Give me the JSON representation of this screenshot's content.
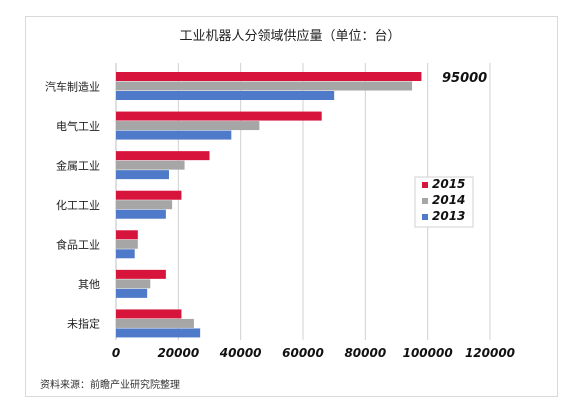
{
  "chart_data": {
    "type": "bar",
    "orientation": "horizontal",
    "title": "工业机器人分领域供应量（单位：台）",
    "categories": [
      "汽车制造业",
      "电气工业",
      "金属工业",
      "化工工业",
      "食品工业",
      "其他",
      "未指定"
    ],
    "series": [
      {
        "name": "2015",
        "color": "#d7143c",
        "values": [
          98000,
          66000,
          30000,
          21000,
          7000,
          16000,
          21000
        ]
      },
      {
        "name": "2014",
        "color": "#a6a6a6",
        "values": [
          95000,
          46000,
          22000,
          18000,
          7000,
          11000,
          25000
        ]
      },
      {
        "name": "2013",
        "color": "#4f7ac9",
        "values": [
          70000,
          37000,
          17000,
          16000,
          6000,
          10000,
          27000
        ]
      }
    ],
    "xlim": [
      0,
      120000
    ],
    "xticks": [
      "0",
      "20000",
      "40000",
      "60000",
      "80000",
      "100000",
      "120000"
    ],
    "annotation": "95000",
    "legend_position": "right",
    "grid": "vertical"
  },
  "source_text": "资料来源：前瞻产业研究院整理"
}
